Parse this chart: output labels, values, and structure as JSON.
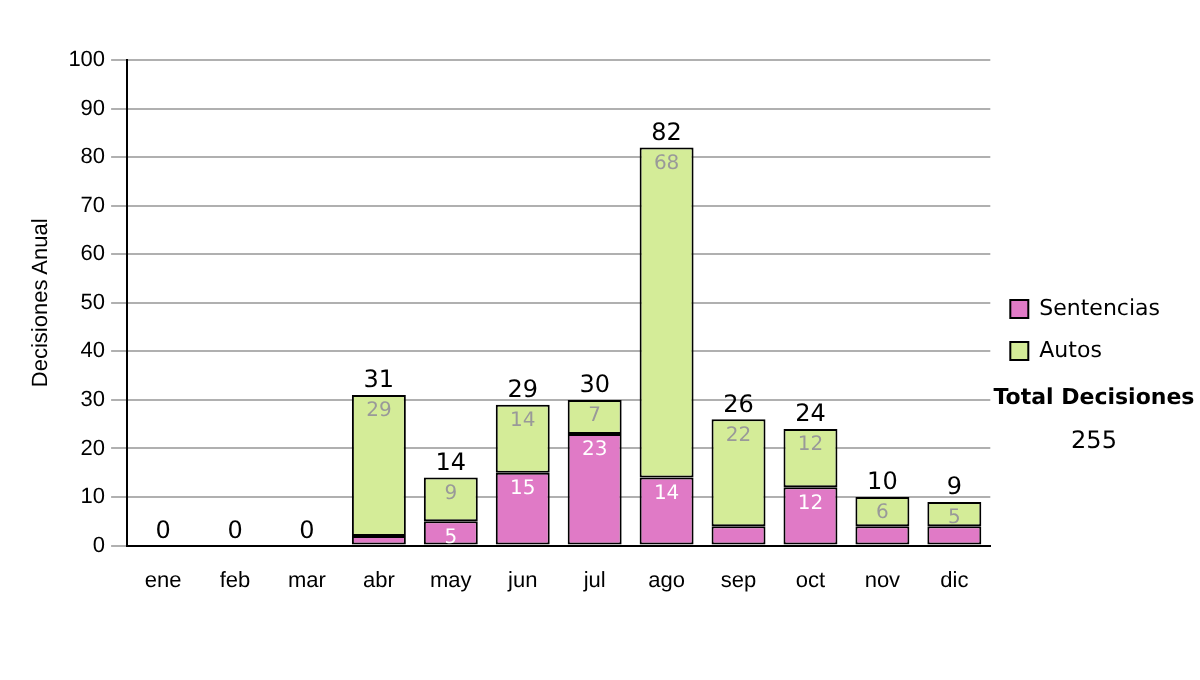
{
  "chart_data": {
    "type": "bar",
    "stacked": true,
    "ylabel": "Decisiones Anual",
    "categories": [
      "ene",
      "feb",
      "mar",
      "abr",
      "may",
      "jun",
      "jul",
      "ago",
      "sep",
      "oct",
      "nov",
      "dic"
    ],
    "series": [
      {
        "name": "Sentencias",
        "color": "#e07ac6",
        "values": [
          0,
          0,
          0,
          2,
          5,
          15,
          23,
          14,
          4,
          12,
          4,
          4
        ],
        "value_labels": [
          null,
          null,
          null,
          null,
          "5",
          "15",
          "23",
          "14",
          null,
          "12",
          null,
          null
        ]
      },
      {
        "name": "Autos",
        "color": "#d4ec98",
        "values": [
          0,
          0,
          0,
          29,
          9,
          14,
          7,
          68,
          22,
          12,
          6,
          5
        ],
        "value_labels": [
          null,
          null,
          null,
          "29",
          "9",
          "14",
          "7",
          "68",
          "22",
          "12",
          "6",
          "5"
        ]
      }
    ],
    "totals": [
      "0",
      "0",
      "0",
      "31",
      "14",
      "29",
      "30",
      "82",
      "26",
      "24",
      "10",
      "9"
    ],
    "ylim": [
      0,
      100
    ],
    "yticks": [
      0,
      10,
      20,
      30,
      40,
      50,
      60,
      70,
      80,
      90,
      100
    ],
    "grid": "y",
    "legend": "right",
    "annotations": [
      "Total Decisiones",
      "255"
    ]
  }
}
